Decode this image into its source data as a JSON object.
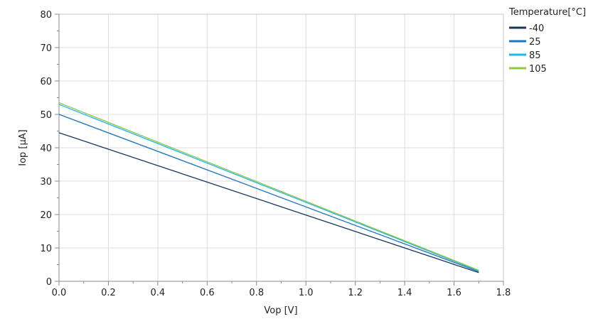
{
  "chart_data": {
    "type": "line",
    "title": "",
    "xlabel": "Vop [V]",
    "ylabel": "Iop [µA]",
    "xlim": [
      0,
      1.8
    ],
    "ylim": [
      0,
      80
    ],
    "xticks": [
      "0.0",
      "0.2",
      "0.4",
      "0.6",
      "0.8",
      "1.0",
      "1.2",
      "1.4",
      "1.6",
      "1.8"
    ],
    "yticks": [
      "0",
      "10",
      "20",
      "30",
      "40",
      "50",
      "60",
      "70",
      "80"
    ],
    "grid": true,
    "legend_title": "Temperature[°C]",
    "legend_position": "right-top",
    "series": [
      {
        "name": "-40",
        "color": "#15365e",
        "x": [
          0,
          1.7
        ],
        "y": [
          44.5,
          2.6
        ]
      },
      {
        "name": "25",
        "color": "#1f74bd",
        "x": [
          0,
          1.7
        ],
        "y": [
          50.0,
          2.9
        ]
      },
      {
        "name": "85",
        "color": "#22b8ea",
        "x": [
          0,
          1.7
        ],
        "y": [
          53.0,
          3.1
        ]
      },
      {
        "name": "105",
        "color": "#8dc63f",
        "x": [
          0,
          1.7
        ],
        "y": [
          53.5,
          3.3
        ]
      }
    ]
  }
}
